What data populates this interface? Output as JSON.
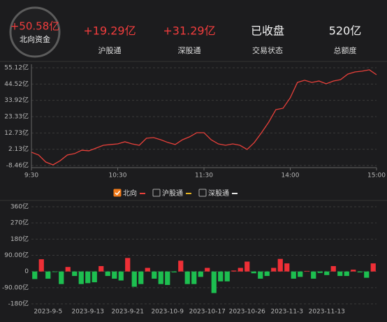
{
  "header": {
    "total": {
      "value": "+50.58亿",
      "label": "北向资金",
      "color": "#f23d3d"
    },
    "stats": [
      {
        "value": "+19.29亿",
        "label": "沪股通",
        "color": "#f23d3d"
      },
      {
        "value": "+31.29亿",
        "label": "深股通",
        "color": "#f23d3d"
      },
      {
        "value": "已收盘",
        "label": "交易状态",
        "color": "#f2f2f2"
      },
      {
        "value": "520亿",
        "label": "总额度",
        "color": "#f2f2f2"
      }
    ]
  },
  "chart_data": [
    {
      "type": "line",
      "x": [
        0,
        5,
        10,
        15,
        20,
        25,
        30,
        35,
        40,
        45,
        50,
        55,
        60,
        65,
        70,
        75,
        80,
        85,
        90,
        95,
        100,
        105,
        110,
        115,
        120,
        125,
        130,
        135,
        140,
        145,
        150,
        155,
        160,
        165,
        170,
        175,
        180,
        185,
        190,
        195,
        200,
        205,
        210,
        215,
        220,
        225,
        230,
        235,
        240
      ],
      "xlim": [
        0,
        240
      ],
      "xticks": [
        {
          "value": 0,
          "label": "9:30"
        },
        {
          "value": 60,
          "label": "10:30"
        },
        {
          "value": 120,
          "label": "11:30"
        },
        {
          "value": 180,
          "label": "14:00"
        },
        {
          "value": 240,
          "label": "15:00"
        }
      ],
      "ylim": [
        -8.46,
        55.12
      ],
      "yticks": [
        {
          "value": 55.12,
          "label": "55.12亿"
        },
        {
          "value": 44.52,
          "label": "44.52亿"
        },
        {
          "value": 33.92,
          "label": "33.92亿"
        },
        {
          "value": 23.33,
          "label": "23.33亿"
        },
        {
          "value": 12.73,
          "label": "12.73亿"
        },
        {
          "value": 2.13,
          "label": "2.13亿"
        },
        {
          "value": -8.46,
          "label": "-8.46亿"
        }
      ],
      "grid": true,
      "series": [
        {
          "name": "北向",
          "color": "#e8403a",
          "visible": true,
          "values": [
            0.2,
            -1.6,
            -6.2,
            -8.0,
            -5.3,
            -1.6,
            -0.7,
            1.5,
            1.1,
            2.9,
            4.7,
            5.2,
            5.6,
            7.0,
            5.6,
            4.7,
            9.3,
            9.7,
            8.3,
            6.5,
            5.2,
            8.3,
            10.2,
            12.9,
            12.9,
            8.3,
            5.6,
            4.7,
            5.6,
            4.7,
            2.0,
            6.5,
            12.9,
            19.7,
            27.9,
            28.8,
            35.6,
            45.6,
            47.0,
            45.6,
            46.5,
            44.7,
            46.5,
            47.4,
            51.0,
            52.4,
            52.9,
            53.8,
            50.58
          ]
        },
        {
          "name": "沪股通",
          "color": "#e6b422",
          "visible": false
        },
        {
          "name": "深股通",
          "color": "#e6e6e6",
          "visible": false
        }
      ]
    },
    {
      "type": "bar",
      "categories": [
        null,
        null,
        "2023-9-5",
        null,
        null,
        null,
        null,
        null,
        "2023-9-13",
        null,
        null,
        null,
        null,
        null,
        "2023-9-21",
        null,
        null,
        null,
        null,
        null,
        "2023-10-9",
        null,
        null,
        null,
        null,
        null,
        "2023-10-17",
        null,
        null,
        null,
        null,
        null,
        "2023-10-26",
        null,
        null,
        null,
        null,
        null,
        "2023-11-3",
        null,
        null,
        null,
        null,
        null,
        "2023-11-13",
        null,
        null,
        null,
        null,
        null,
        null,
        null
      ],
      "values": [
        -42,
        68,
        -40,
        -3,
        -70,
        25,
        -25,
        -70,
        -65,
        -60,
        30,
        -25,
        -40,
        -50,
        75,
        -85,
        -70,
        20,
        -40,
        -70,
        -75,
        -5,
        60,
        -70,
        -70,
        -30,
        20,
        -120,
        -55,
        -55,
        5,
        20,
        55,
        -10,
        -40,
        -25,
        20,
        70,
        45,
        -40,
        -30,
        3,
        -40,
        -8,
        -20,
        30,
        -25,
        -25,
        10,
        -5,
        -35,
        45
      ],
      "positive_color": "#ee2f36",
      "negative_color": "#1dbf50",
      "ylim": [
        -180,
        360
      ],
      "yticks": [
        {
          "value": 360,
          "label": "360亿"
        },
        {
          "value": 270,
          "label": "270亿"
        },
        {
          "value": 180,
          "label": "180亿"
        },
        {
          "value": 90,
          "label": "90.00亿"
        },
        0,
        {
          "value": -90,
          "label": "-90.00亿"
        },
        {
          "value": -180,
          "label": "-180亿"
        }
      ],
      "grid": true
    }
  ]
}
